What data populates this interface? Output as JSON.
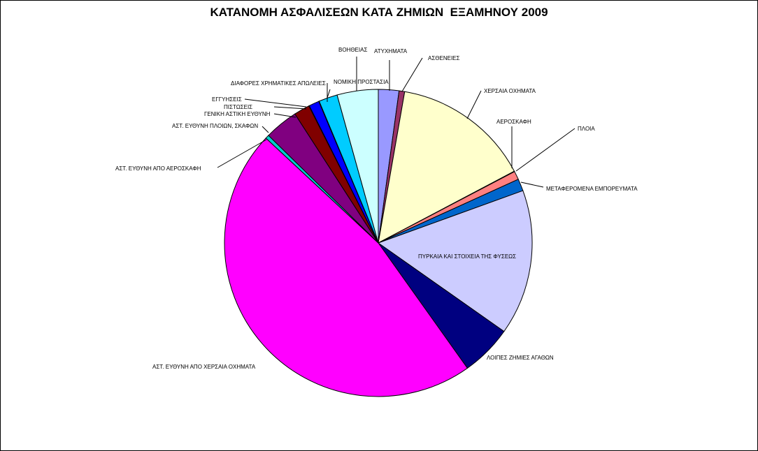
{
  "chart_data": {
    "type": "pie",
    "title": "ΚΑΤΑΝΟΜΗ ΑΣΦΑΛΙΣΕΩΝ ΚΑΤΑ ΖΗΜΙΩΝ  ΕΞΑΜΗΝΟΥ 2009",
    "start_angle_deg": 0,
    "direction": "clockwise",
    "slices": [
      {
        "label": "ΑΤΥΧΗΜΑΤΑ",
        "value": 2.2,
        "color": "#9999ff"
      },
      {
        "label": "ΑΣΘΕΝΕΙΕΣ",
        "value": 0.6,
        "color": "#993366"
      },
      {
        "label": "ΧΕΡΣΑΙΑ  ΟΧΗΜΑΤΑ",
        "value": 14.8,
        "color": "#ffffcc"
      },
      {
        "label": "ΑΕΡΟΣΚΑΦΗ",
        "value": 0.05,
        "color": "#660066"
      },
      {
        "label": "ΠΛΟΙΑ",
        "value": 0.9,
        "color": "#ff8080"
      },
      {
        "label": "ΜΕΤΑΦΕΡΟΜΕΝΑ  ΕΜΠΟΡΕΥΜΑΤΑ",
        "value": 1.3,
        "color": "#0066cc"
      },
      {
        "label": "ΠΥΡΚΑΙΑ  ΚΑΙ ΣΤΟΙΧΕΙΑ  ΤΗΣ ΦΥΣΕΩΣ",
        "value": 15.6,
        "color": "#ccccff"
      },
      {
        "label": "ΛΟΙΠΕΣ  ΖΗΜΙΕΣ ΑΓΑΘΩΝ",
        "value": 5.5,
        "color": "#000080"
      },
      {
        "label": "ΑΣΤ. ΕΥΘΥΝΗ  ΑΠΟ ΧΕΡΣΑΙΑ  ΟΧΗΜΑΤΑ",
        "value": 47.7,
        "color": "#ff00ff"
      },
      {
        "label": "ΑΣΤ. ΕΥΘΥΝΗ  ΑΠΟ ΑΕΡΟΣΚΑΦΗ",
        "value": 0.4,
        "color": "#00cccc"
      },
      {
        "label": "ΑΣΤ. ΕΥΘΥΝΗ  ΠΛΟΙΩΝ,  ΣΚΑΦΩΝ",
        "value": 3.6,
        "color": "#800080"
      },
      {
        "label": "ΓΕΝΙΚΗ  ΑΣΤΙΚΗ  ΕΥΘΥΝΗ",
        "value": 1.7,
        "color": "#800000"
      },
      {
        "label": "ΠΙΣΤΩΣΕΙΣ",
        "value": 0.05,
        "color": "#008080"
      },
      {
        "label": "ΕΓΓΥΗΣΕΙΣ",
        "value": 1.1,
        "color": "#0000ff"
      },
      {
        "label": "ΔΙΑΦΟΡΕΣ  ΧΡΗΜΑΤΙΚΕΣ  ΑΠΩΛΕΙΕΣ",
        "value": 0.05,
        "color": "#00ccff"
      },
      {
        "label": "ΝΟΜΙΚΗ  ΠΡΟΣΤΑΣΙΑ",
        "value": 2.0,
        "color": "#00ccff"
      },
      {
        "label": "ΒΟΗΘΕΙΑΣ",
        "value": 4.4,
        "color": "#ccffff"
      }
    ]
  }
}
